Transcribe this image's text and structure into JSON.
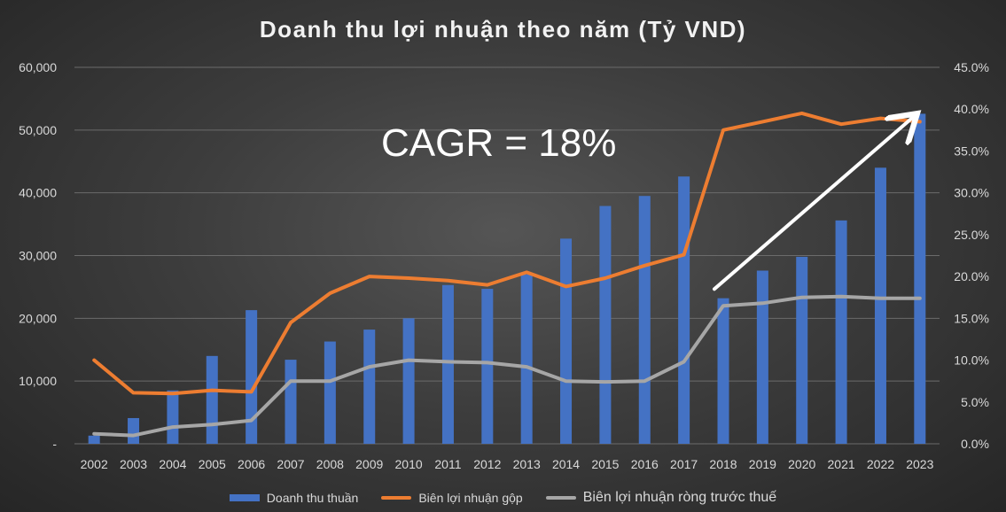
{
  "chart_data": {
    "type": "bar+line",
    "title": "Doanh thu lợi nhuận theo năm (Tỷ VND)",
    "categories": [
      "2002",
      "2003",
      "2004",
      "2005",
      "2006",
      "2007",
      "2008",
      "2009",
      "2010",
      "2011",
      "2012",
      "2013",
      "2014",
      "2015",
      "2016",
      "2017",
      "2018",
      "2019",
      "2020",
      "2021",
      "2022",
      "2023"
    ],
    "left_axis": {
      "min": 0,
      "max": 60000,
      "ticks": [
        0,
        10000,
        20000,
        30000,
        40000,
        50000,
        60000
      ],
      "tick_labels": [
        "-",
        "10,000",
        "20,000",
        "30,000",
        "40,000",
        "50,000",
        "60,000"
      ]
    },
    "right_axis": {
      "min": 0,
      "max": 45,
      "ticks": [
        0,
        5,
        10,
        15,
        20,
        25,
        30,
        35,
        40,
        45
      ],
      "tick_labels": [
        "0.0%",
        "5.0%",
        "10.0%",
        "15.0%",
        "20.0%",
        "25.0%",
        "30.0%",
        "35.0%",
        "40.0%",
        "45.0%"
      ]
    },
    "series": [
      {
        "name": "Doanh thu thuần",
        "kind": "bar",
        "axis": "left",
        "color": "#4472c4",
        "values": [
          1300,
          4100,
          8500,
          14000,
          21300,
          13400,
          16300,
          18200,
          20000,
          25300,
          24700,
          27000,
          32700,
          37900,
          39500,
          42600,
          23200,
          27600,
          29800,
          35600,
          44000,
          52600
        ]
      },
      {
        "name": "Biên lợi nhuận gộp",
        "kind": "line",
        "axis": "right",
        "color": "#ed7d31",
        "values": [
          10.0,
          6.1,
          6.0,
          6.4,
          6.2,
          14.5,
          18.0,
          20.0,
          19.8,
          19.5,
          19.0,
          20.5,
          18.8,
          19.8,
          21.3,
          22.6,
          37.5,
          38.5,
          39.5,
          38.2,
          38.9,
          38.5
        ]
      },
      {
        "name": "Biên lợi nhuận ròng trước thuế",
        "kind": "line",
        "axis": "right",
        "color": "#a6a6a6",
        "values": [
          1.2,
          1.0,
          2.0,
          2.3,
          2.8,
          7.5,
          7.5,
          9.2,
          10.0,
          9.8,
          9.7,
          9.2,
          7.5,
          7.4,
          7.5,
          9.8,
          16.5,
          16.8,
          17.5,
          17.6,
          17.4,
          17.4
        ]
      }
    ],
    "annotation": {
      "text": "CAGR = 18%",
      "arrow_from": {
        "category": "2018",
        "right_value": 18.5
      },
      "arrow_to": {
        "category": "2023",
        "right_value": 39.2
      }
    },
    "legend_position": "bottom"
  }
}
